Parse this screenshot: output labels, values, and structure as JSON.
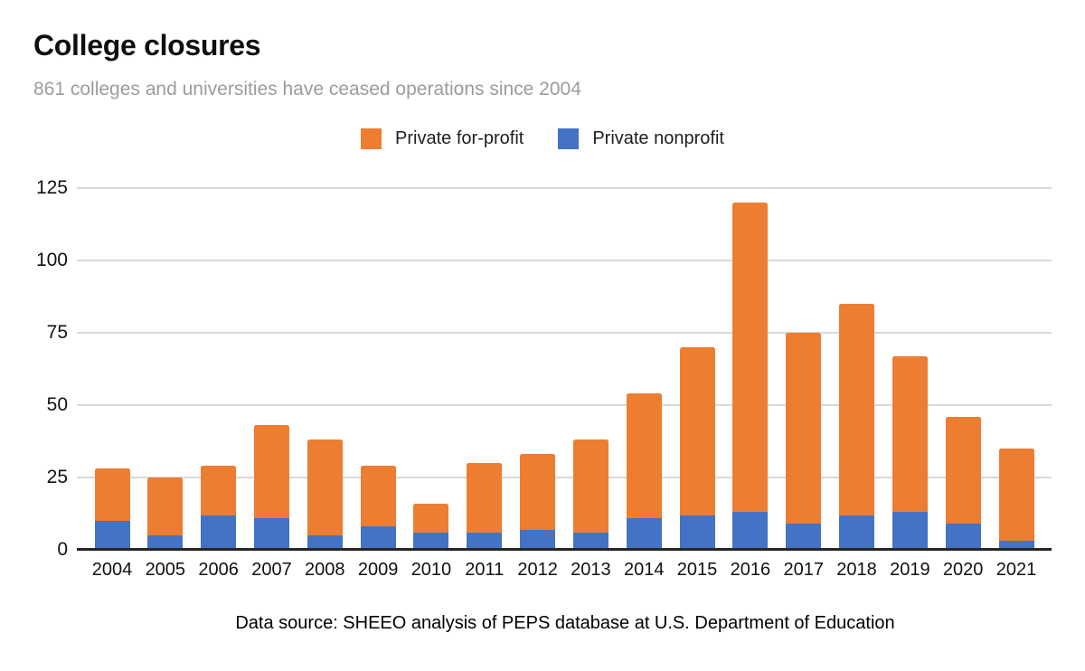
{
  "header": {
    "title": "College closures",
    "subtitle": "861 colleges and universities have ceased operations since 2004"
  },
  "legend": [
    {
      "label": "Private for-profit",
      "color": "#ED7D31"
    },
    {
      "label": "Private nonprofit",
      "color": "#4472C4"
    }
  ],
  "footer": {
    "source": "Data source: SHEEO analysis of PEPS database at U.S. Department of Education"
  },
  "colors": {
    "for_profit": "#ED7D31",
    "nonprofit": "#4472C4",
    "gridline": "#D9D9D9",
    "axis": "#262626",
    "subtitle_gray": "#9C9C9C"
  },
  "chart_data": {
    "type": "bar",
    "stacked": true,
    "title": "College closures",
    "subtitle": "861 colleges and universities have ceased operations since 2004",
    "categories": [
      "2004",
      "2005",
      "2006",
      "2007",
      "2008",
      "2009",
      "2010",
      "2011",
      "2012",
      "2013",
      "2014",
      "2015",
      "2016",
      "2017",
      "2018",
      "2019",
      "2020",
      "2021"
    ],
    "series": [
      {
        "name": "Private nonprofit",
        "color": "#4472C4",
        "stack_order": "bottom",
        "values": [
          10,
          5,
          12,
          11,
          5,
          8,
          6,
          6,
          7,
          6,
          11,
          12,
          13,
          9,
          12,
          13,
          9,
          3
        ]
      },
      {
        "name": "Private for-profit",
        "color": "#ED7D31",
        "stack_order": "top",
        "values": [
          18,
          20,
          17,
          32,
          33,
          21,
          10,
          24,
          26,
          32,
          43,
          58,
          107,
          66,
          73,
          54,
          37,
          32
        ]
      }
    ],
    "totals": [
      28,
      25,
      29,
      43,
      38,
      29,
      16,
      30,
      33,
      38,
      54,
      70,
      120,
      75,
      85,
      67,
      46,
      35
    ],
    "grand_total": 861,
    "xlabel": "",
    "ylabel": "",
    "yticks": [
      0,
      25,
      50,
      75,
      100,
      125
    ],
    "ylim": [
      0,
      129
    ],
    "grid": true,
    "legend_position": "top"
  }
}
